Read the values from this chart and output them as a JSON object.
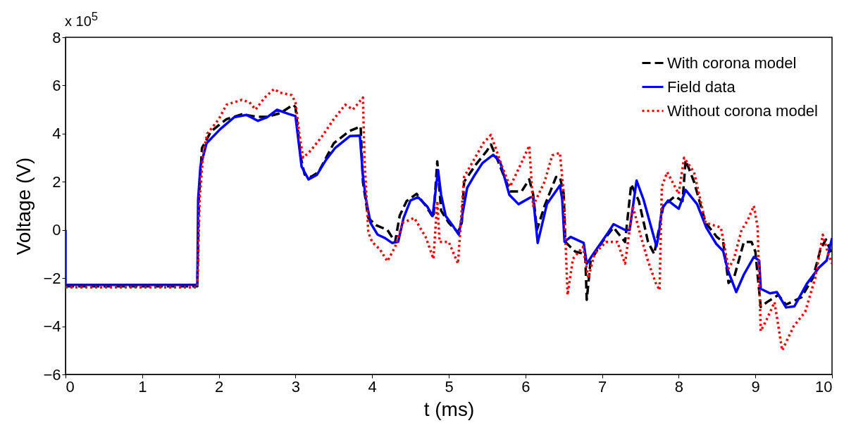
{
  "chart_data": {
    "type": "line",
    "xlabel": "t (ms)",
    "ylabel": "Voltage (V)",
    "annotations": [
      "x 10$^{5}$"
    ],
    "xlim": [
      0,
      10
    ],
    "xticks": [
      0,
      1,
      2,
      3,
      4,
      5,
      6,
      7,
      8,
      9,
      10
    ],
    "ylim": [
      -6,
      8
    ],
    "yticks": [
      -6,
      -4,
      -2,
      0,
      2,
      4,
      6,
      8
    ],
    "grid": false,
    "legend": "top right",
    "marker": "none",
    "series": [
      {
        "name": "With corona model",
        "color": "#000000",
        "line_style": "dashed",
        "x": [
          0,
          1.72,
          1.74,
          1.78,
          1.9,
          2.1,
          2.3,
          2.5,
          2.63,
          2.8,
          2.97,
          3.0,
          3.07,
          3.12,
          3.2,
          3.3,
          3.5,
          3.7,
          3.85,
          3.88,
          3.95,
          4.05,
          4.2,
          4.3,
          4.36,
          4.45,
          4.58,
          4.7,
          4.8,
          4.85,
          4.9,
          5.0,
          5.12,
          5.17,
          5.2,
          5.35,
          5.5,
          5.55,
          5.65,
          5.8,
          5.95,
          6.05,
          6.1,
          6.15,
          6.25,
          6.4,
          6.45,
          6.5,
          6.52,
          6.65,
          6.78,
          6.8,
          6.85,
          7.0,
          7.15,
          7.3,
          7.38,
          7.48,
          7.6,
          7.68,
          7.74,
          7.8,
          7.95,
          8.05,
          8.09,
          8.2,
          8.35,
          8.5,
          8.58,
          8.65,
          8.72,
          8.85,
          8.95,
          9.0,
          9.07,
          9.15,
          9.3,
          9.4,
          9.6,
          9.75,
          9.85,
          9.92,
          10.0
        ],
        "values": [
          -2.34,
          -2.34,
          1.3,
          3.4,
          4.1,
          4.6,
          4.8,
          4.7,
          4.7,
          4.85,
          5.2,
          5.1,
          3.0,
          2.3,
          2.2,
          2.4,
          3.6,
          4.1,
          4.3,
          2.0,
          0.5,
          0.2,
          0,
          -0.5,
          0.6,
          1.2,
          1.5,
          1.0,
          0.5,
          2.85,
          0.8,
          0.3,
          -0.1,
          0.3,
          2.0,
          2.7,
          3.3,
          3.55,
          2.8,
          1.6,
          1.6,
          2.1,
          1.5,
          0,
          1.0,
          2.2,
          2.2,
          1.5,
          -0.5,
          -0.9,
          -1.0,
          -2.9,
          -1.3,
          -0.5,
          0.1,
          -0.5,
          1.9,
          1.2,
          -0.5,
          -1.0,
          0,
          1.0,
          1.4,
          1.2,
          2.9,
          2.0,
          0.3,
          -0.3,
          -0.5,
          -2.2,
          -2.0,
          -0.5,
          -0.5,
          -0.9,
          -3.2,
          -3.0,
          -2.7,
          -3.1,
          -2.8,
          -2.0,
          -0.8,
          -0.4,
          -1.0
        ]
      },
      {
        "name": "Field data",
        "color": "#0000ff",
        "line_style": "solid",
        "x": [
          0,
          0,
          1.72,
          1.73,
          1.76,
          1.84,
          2.02,
          2.2,
          2.36,
          2.51,
          2.63,
          2.76,
          2.91,
          3.0,
          3.08,
          3.17,
          3.28,
          3.4,
          3.52,
          3.71,
          3.84,
          3.88,
          3.92,
          3.98,
          4.07,
          4.17,
          4.26,
          4.34,
          4.41,
          4.5,
          4.6,
          4.72,
          4.79,
          4.86,
          4.9,
          4.96,
          5.05,
          5.13,
          5.18,
          5.24,
          5.33,
          5.44,
          5.58,
          5.67,
          5.79,
          5.91,
          6.07,
          6.1,
          6.16,
          6.28,
          6.45,
          6.48,
          6.51,
          6.59,
          6.76,
          6.8,
          6.89,
          7.08,
          7.15,
          7.3,
          7.36,
          7.45,
          7.54,
          7.71,
          7.74,
          7.78,
          7.86,
          8.0,
          8.09,
          8.24,
          8.36,
          8.49,
          8.58,
          8.64,
          8.75,
          8.85,
          8.98,
          9.05,
          9.07,
          9.19,
          9.28,
          9.4,
          9.51,
          9.67,
          9.83,
          9.93,
          10.0
        ],
        "values": [
          0,
          -2.28,
          -2.28,
          1.27,
          2.63,
          3.6,
          4.19,
          4.68,
          4.78,
          4.53,
          4.68,
          4.99,
          4.82,
          4.73,
          2.63,
          2.1,
          2.29,
          2.92,
          3.41,
          3.9,
          3.92,
          2.24,
          1.27,
          0.29,
          -0.19,
          -0.34,
          -0.54,
          -0.49,
          0.49,
          1.22,
          1.36,
          0.97,
          0.58,
          2.49,
          1.46,
          0.58,
          0.19,
          -0.19,
          0.68,
          1.75,
          2.24,
          2.78,
          3.12,
          2.83,
          1.46,
          1.07,
          1.36,
          1.36,
          -0.54,
          1.07,
          1.85,
          1.27,
          -0.49,
          -0.29,
          -0.54,
          -1.41,
          -0.97,
          -0.1,
          0.24,
          0,
          0,
          2.05,
          1.27,
          -0.68,
          -0.19,
          0.88,
          1.22,
          0.88,
          1.66,
          1.07,
          0.1,
          -0.58,
          -0.88,
          -1.66,
          -2.58,
          -1.85,
          -1.12,
          -1.27,
          -2.44,
          -2.63,
          -2.58,
          -3.22,
          -3.17,
          -2.24,
          -1.56,
          -1.27,
          -0.34
        ]
      },
      {
        "name": "Without corona model",
        "color": "#ff0000",
        "line_style": "dotted",
        "x": [
          0,
          1.72,
          1.75,
          1.8,
          1.85,
          2.0,
          2.1,
          2.3,
          2.4,
          2.48,
          2.6,
          2.72,
          2.8,
          2.95,
          3.0,
          3.05,
          3.1,
          3.2,
          3.35,
          3.5,
          3.65,
          3.75,
          3.88,
          3.9,
          3.95,
          4.0,
          4.1,
          4.2,
          4.3,
          4.4,
          4.55,
          4.7,
          4.8,
          4.85,
          4.88,
          5.0,
          5.12,
          5.15,
          5.2,
          5.45,
          5.55,
          5.7,
          5.8,
          5.95,
          6.05,
          6.1,
          6.25,
          6.35,
          6.45,
          6.5,
          6.55,
          6.62,
          6.75,
          6.82,
          6.9,
          7.05,
          7.2,
          7.3,
          7.4,
          7.5,
          7.6,
          7.7,
          7.75,
          7.78,
          7.85,
          8.0,
          8.07,
          8.2,
          8.35,
          8.55,
          8.65,
          8.72,
          8.82,
          8.9,
          8.98,
          9.03,
          9.07,
          9.15,
          9.25,
          9.35,
          9.5,
          9.65,
          9.78,
          9.88,
          9.95,
          10.0
        ],
        "values": [
          -2.38,
          -2.38,
          1.3,
          3.3,
          4.0,
          4.6,
          5.2,
          5.4,
          5.3,
          5.0,
          5.5,
          5.85,
          5.7,
          5.6,
          5.3,
          4.0,
          3.0,
          3.3,
          3.9,
          4.6,
          5.2,
          5.0,
          5.5,
          3.0,
          -0.1,
          -0.5,
          -0.8,
          -1.3,
          -0.7,
          0.3,
          0.5,
          -0.3,
          -1.2,
          1.2,
          -0.5,
          -0.5,
          -1.4,
          0,
          2.2,
          3.6,
          3.95,
          2.6,
          1.8,
          2.8,
          3.5,
          1.0,
          2.0,
          3.1,
          3.2,
          1.5,
          -2.7,
          -1.2,
          -0.7,
          -2.0,
          -1.0,
          -0.5,
          -0.5,
          -1.4,
          1.0,
          -0.2,
          -1.3,
          -2.2,
          -2.5,
          1.8,
          2.4,
          1.5,
          3.0,
          2.4,
          0.3,
          0.1,
          -1.6,
          -1.2,
          0,
          0.4,
          1.0,
          0.1,
          -4.2,
          -3.7,
          -3.0,
          -5.0,
          -4.0,
          -3.4,
          -2.0,
          -0.2,
          -1.0,
          -1.4
        ]
      }
    ]
  }
}
